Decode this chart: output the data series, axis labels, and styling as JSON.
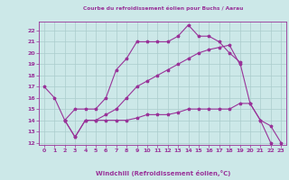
{
  "bg_color": "#cce8e8",
  "grid_color": "#aacccc",
  "line_color": "#993399",
  "title": "Courbe du refroidissement éolien pour Buchs / Aarau",
  "xlabel": "Windchill (Refroidissement éolien,°C)",
  "xlim": [
    -0.5,
    23.5
  ],
  "ylim": [
    11.8,
    22.8
  ],
  "xticks": [
    0,
    1,
    2,
    3,
    4,
    5,
    6,
    7,
    8,
    9,
    10,
    11,
    12,
    13,
    14,
    15,
    16,
    17,
    18,
    19,
    20,
    21,
    22,
    23
  ],
  "yticks": [
    12,
    13,
    14,
    15,
    16,
    17,
    18,
    19,
    20,
    21,
    22
  ],
  "series": [
    {
      "x": [
        0,
        1,
        2,
        3,
        4,
        5,
        6,
        7,
        8,
        9,
        10,
        11,
        12,
        13,
        14,
        15,
        16,
        17,
        18,
        19,
        20,
        21,
        22,
        23
      ],
      "y": [
        17,
        16,
        14,
        15,
        15,
        15,
        16,
        18.5,
        19.5,
        21,
        21,
        21,
        21,
        21.5,
        22.5,
        21.5,
        21.5,
        21,
        20,
        19.2,
        15.5,
        14,
        13.5,
        12
      ]
    },
    {
      "x": [
        2,
        3,
        4,
        5,
        6,
        7,
        8,
        9,
        10,
        11,
        12,
        13,
        14,
        15,
        16,
        17,
        18,
        19,
        20,
        21,
        22
      ],
      "y": [
        14,
        12.5,
        14,
        14,
        14,
        14,
        14,
        14.2,
        14.5,
        14.5,
        14.5,
        14.7,
        15,
        15,
        15,
        15,
        15,
        15.5,
        15.5,
        14,
        12
      ]
    },
    {
      "x": [
        2,
        3,
        4,
        5,
        6,
        7,
        8,
        9,
        10,
        11,
        12,
        13,
        14,
        15,
        16,
        17,
        18,
        19
      ],
      "y": [
        14,
        12.5,
        14,
        14,
        14.5,
        15,
        16,
        17,
        17.5,
        18,
        18.5,
        19,
        19.5,
        20,
        20.3,
        20.5,
        20.7,
        19
      ]
    }
  ]
}
